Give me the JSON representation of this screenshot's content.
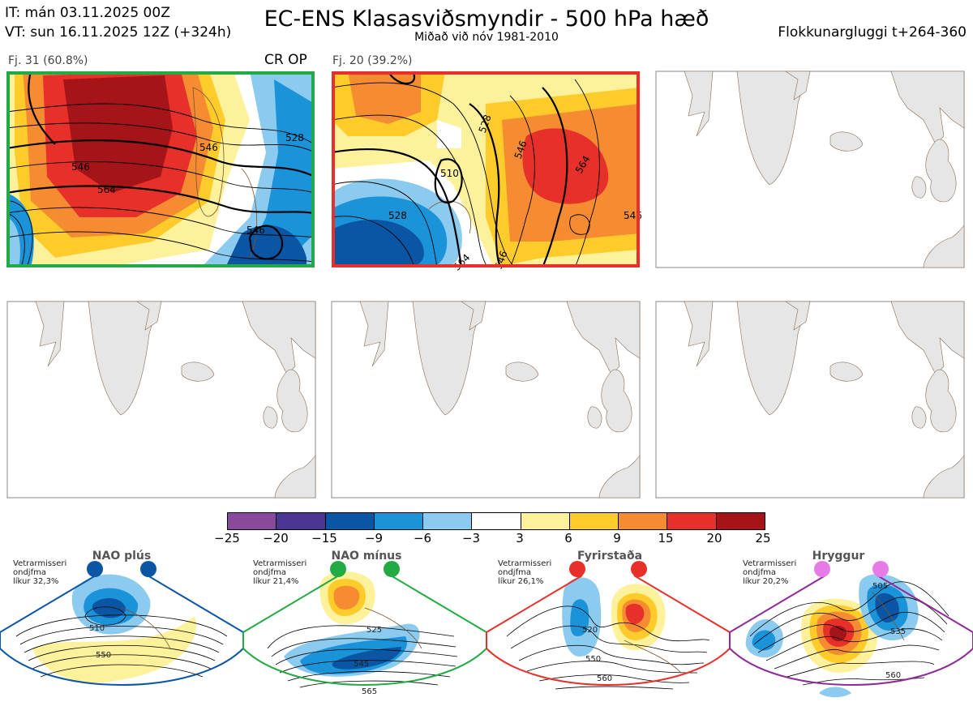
{
  "header": {
    "it_line": "IT: mán 03.11.2025 00Z",
    "vt_line": "VT: sun 16.11.2025 12Z  (+324h)",
    "title": "EC-ENS Klasasviðsmyndir - 500 hPa hæð",
    "subtitle": "Miðað við nóv 1981-2010",
    "window": "Flokkunargluggi t+264-360"
  },
  "panels": [
    {
      "label": "Fj. 31 (60.8%)",
      "tags": "CR OP",
      "border_color": "#22aa44"
    },
    {
      "label": "Fj. 20 (39.2%)",
      "tags": "",
      "border_color": "#e8302a"
    }
  ],
  "panel1_contours": [
    "528",
    "546",
    "546",
    "564",
    "546"
  ],
  "panel2_contours": [
    "510",
    "528",
    "528",
    "546",
    "564",
    "546",
    "564",
    "546"
  ],
  "colorbar": {
    "ticks": [
      "−25",
      "−20",
      "−15",
      "−9",
      "−6",
      "−3",
      "3",
      "6",
      "9",
      "15",
      "20",
      "25"
    ],
    "colors": [
      "#8a4a9c",
      "#4a3590",
      "#0b56a4",
      "#1b93d9",
      "#8ccbf0",
      "#ffffff",
      "#fdf29b",
      "#fdcb2a",
      "#f58c32",
      "#e8302a",
      "#a51419"
    ]
  },
  "regimes": [
    {
      "name": "NAO plús",
      "info1": "Vetrarmisseri",
      "info2": "ondjfma",
      "info3": "líkur 32,3%",
      "color": "#0b56a4",
      "contours": [
        "510",
        "550"
      ]
    },
    {
      "name": "NAO mínus",
      "info1": "Vetrarmisseri",
      "info2": "ondjfma",
      "info3": "líkur 21,4%",
      "color": "#22aa44",
      "contours": [
        "525",
        "545",
        "565"
      ]
    },
    {
      "name": "Fyrirstaða",
      "info1": "Vetrarmisseri",
      "info2": "ondjfma",
      "info3": "líkur 26,1%",
      "color": "#e8302a",
      "contours": [
        "520",
        "550",
        "560"
      ]
    },
    {
      "name": "Hryggur",
      "info1": "Vetrarmisseri",
      "info2": "ondjfma",
      "info3": "líkur 20,2%",
      "color": "#8e2a9a",
      "contours": [
        "505",
        "535",
        "560"
      ]
    }
  ]
}
